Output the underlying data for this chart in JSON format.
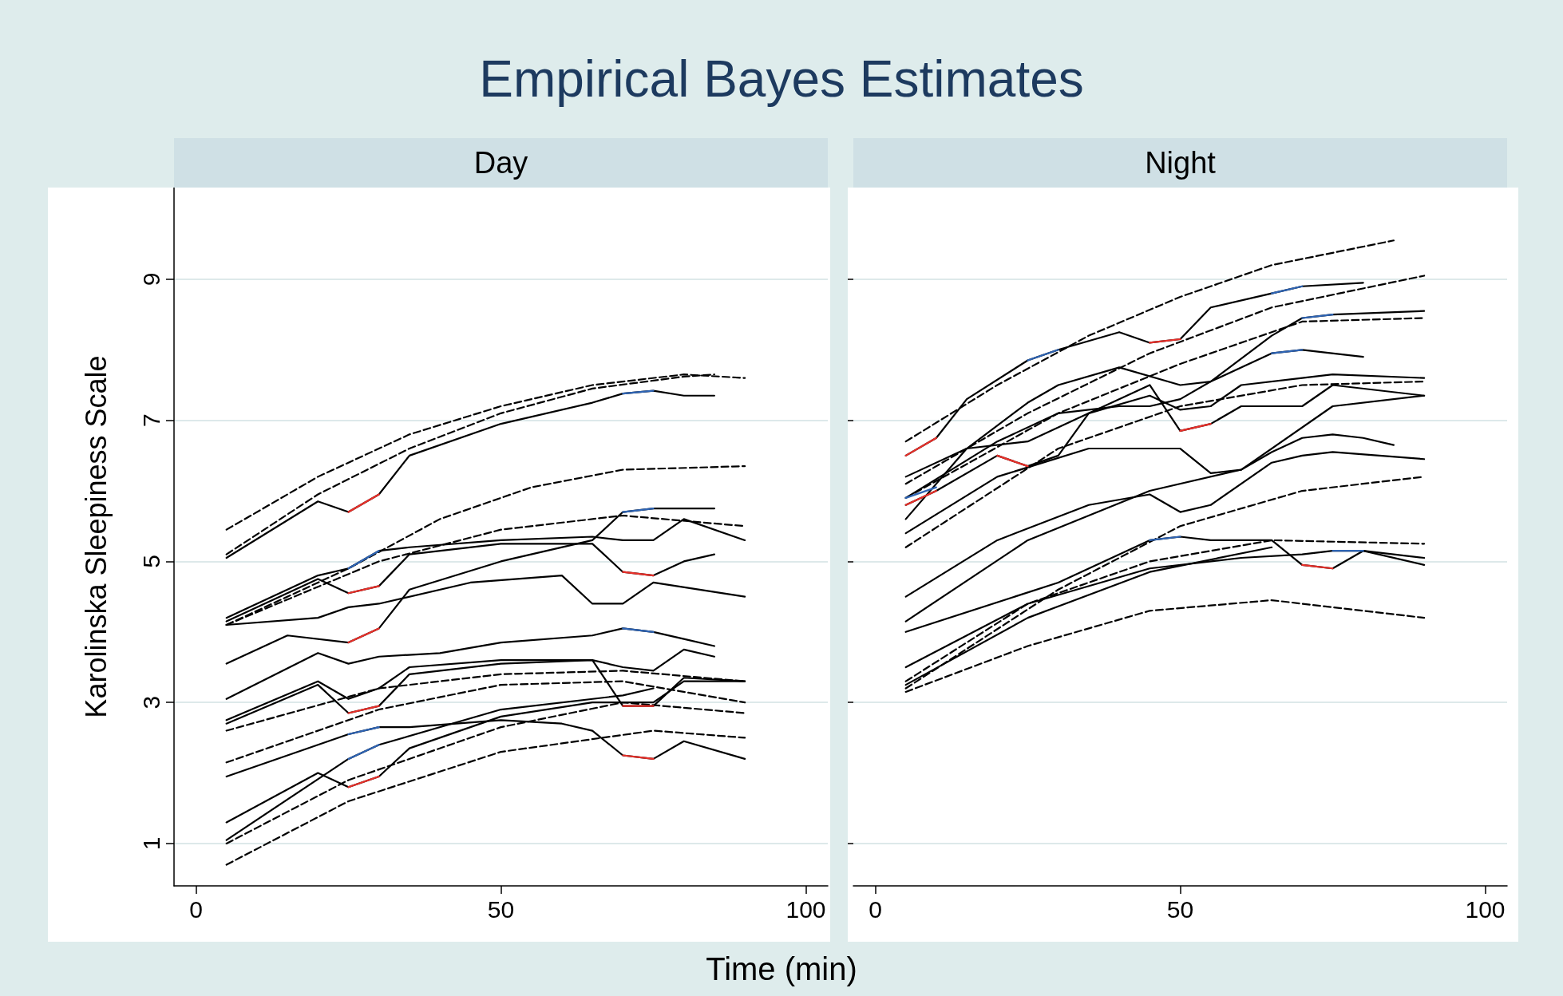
{
  "chart_data": [
    {
      "type": "line",
      "title": "Empirical Bayes Estimates",
      "subtitle": "Day",
      "ylabel": "Karolinska Sleepiness Scale",
      "xlim": [
        -3.6,
        103.6
      ],
      "ylim": [
        0.4,
        10.3
      ],
      "xticks": [
        0,
        50,
        100
      ],
      "yticks": [
        1,
        3,
        5,
        7,
        9
      ],
      "grid": "y",
      "marker": "none",
      "series": [
        {
          "color": "#000000",
          "line_style": "dashed",
          "x": [
            5,
            20,
            35,
            50,
            65,
            80,
            90
          ],
          "values": [
            5.45,
            6.2,
            6.8,
            7.2,
            7.5,
            7.65,
            7.6
          ]
        },
        {
          "color": "#000000",
          "line_style": "dashed",
          "x": [
            5,
            20,
            35,
            50,
            65,
            80,
            85
          ],
          "values": [
            5.1,
            5.95,
            6.6,
            7.1,
            7.45,
            7.62,
            7.65
          ]
        },
        {
          "color": "#000000",
          "line_style": "dashed",
          "x": [
            5,
            25,
            40,
            55,
            70,
            90
          ],
          "values": [
            4.1,
            4.9,
            5.6,
            6.05,
            6.3,
            6.35
          ]
        },
        {
          "color": "#000000",
          "line_style": "dashed",
          "x": [
            5,
            30,
            50,
            70,
            90
          ],
          "values": [
            4.1,
            5.0,
            5.45,
            5.65,
            5.5
          ]
        },
        {
          "color": "#000000",
          "line_style": "dashed",
          "x": [
            5,
            30,
            50,
            70,
            90
          ],
          "values": [
            2.6,
            3.2,
            3.4,
            3.45,
            3.3
          ]
        },
        {
          "color": "#000000",
          "line_style": "dashed",
          "x": [
            5,
            30,
            50,
            70,
            90
          ],
          "values": [
            2.15,
            2.9,
            3.25,
            3.3,
            3.0
          ]
        },
        {
          "color": "#000000",
          "line_style": "dashed",
          "x": [
            5,
            25,
            50,
            70,
            90
          ],
          "values": [
            1.0,
            1.9,
            2.65,
            3.0,
            2.85
          ]
        },
        {
          "color": "#000000",
          "line_style": "dashed",
          "x": [
            5,
            25,
            50,
            75,
            90
          ],
          "values": [
            0.7,
            1.6,
            2.3,
            2.6,
            2.5
          ]
        },
        {
          "color": "#000000",
          "line_style": "solid",
          "x": [
            5,
            20,
            25,
            30,
            35,
            50,
            65,
            70,
            75,
            80,
            85
          ],
          "values": [
            5.05,
            5.85,
            5.7,
            5.95,
            6.5,
            6.95,
            7.25,
            7.38,
            7.42,
            7.35,
            7.35
          ]
        },
        {
          "color": "#000000",
          "line_style": "solid",
          "x": [
            5,
            20,
            25,
            30,
            35,
            50,
            65,
            70,
            75,
            80,
            90
          ],
          "values": [
            4.2,
            4.8,
            4.9,
            5.15,
            5.2,
            5.3,
            5.35,
            5.3,
            5.3,
            5.6,
            5.3
          ]
        },
        {
          "color": "#000000",
          "line_style": "solid",
          "x": [
            5,
            20,
            25,
            30,
            35,
            50,
            65,
            70,
            75,
            80,
            85
          ],
          "values": [
            4.15,
            4.75,
            4.55,
            4.65,
            5.1,
            5.25,
            5.25,
            4.85,
            4.8,
            5.0,
            5.1
          ]
        },
        {
          "color": "#000000",
          "line_style": "solid",
          "x": [
            5,
            20,
            25,
            30,
            45,
            60,
            65,
            70,
            75,
            90
          ],
          "values": [
            4.1,
            4.2,
            4.35,
            4.4,
            4.7,
            4.8,
            4.4,
            4.4,
            4.7,
            4.5
          ]
        },
        {
          "color": "#000000",
          "line_style": "solid",
          "x": [
            5,
            15,
            25,
            30,
            35,
            50,
            65,
            70,
            75,
            85
          ],
          "values": [
            3.55,
            3.95,
            3.85,
            4.05,
            4.6,
            5.0,
            5.3,
            5.7,
            5.75,
            5.75
          ]
        },
        {
          "color": "#000000",
          "line_style": "solid",
          "x": [
            5,
            20,
            25,
            30,
            40,
            50,
            65,
            70,
            75,
            80,
            85
          ],
          "values": [
            3.05,
            3.7,
            3.55,
            3.65,
            3.7,
            3.85,
            3.95,
            4.05,
            4.0,
            3.9,
            3.8
          ]
        },
        {
          "color": "#000000",
          "line_style": "solid",
          "x": [
            5,
            20,
            25,
            30,
            35,
            50,
            65,
            70,
            75,
            80,
            85
          ],
          "values": [
            2.75,
            3.3,
            3.05,
            3.2,
            3.5,
            3.6,
            3.6,
            3.5,
            3.45,
            3.75,
            3.65
          ]
        },
        {
          "color": "#000000",
          "line_style": "solid",
          "x": [
            5,
            20,
            25,
            30,
            35,
            50,
            65,
            70,
            75,
            80,
            90
          ],
          "values": [
            2.7,
            3.25,
            2.85,
            2.95,
            3.4,
            3.55,
            3.6,
            2.95,
            2.95,
            3.35,
            3.3
          ]
        },
        {
          "color": "#000000",
          "line_style": "solid",
          "x": [
            5,
            20,
            25,
            30,
            35,
            50,
            60,
            65,
            70,
            75,
            80,
            90
          ],
          "values": [
            1.95,
            2.4,
            2.55,
            2.65,
            2.65,
            2.75,
            2.7,
            2.6,
            2.25,
            2.2,
            2.45,
            2.2
          ]
        },
        {
          "color": "#000000",
          "line_style": "solid",
          "x": [
            5,
            20,
            25,
            30,
            35,
            50,
            65,
            70,
            75,
            80,
            90
          ],
          "values": [
            1.3,
            2.0,
            1.8,
            1.95,
            2.35,
            2.8,
            3.0,
            3.0,
            3.0,
            3.3,
            3.3
          ]
        },
        {
          "color": "#000000",
          "line_style": "solid",
          "x": [
            5,
            25,
            30,
            50,
            70,
            75
          ],
          "values": [
            1.05,
            2.2,
            2.4,
            2.9,
            3.1,
            3.2
          ]
        },
        {
          "color": "#e8302a",
          "line_style": "solid",
          "x": [
            25,
            30
          ],
          "values": [
            5.7,
            5.95
          ]
        },
        {
          "color": "#2e64b4",
          "line_style": "solid",
          "x": [
            70,
            75
          ],
          "values": [
            7.38,
            7.42
          ]
        },
        {
          "color": "#2e64b4",
          "line_style": "solid",
          "x": [
            25,
            30
          ],
          "values": [
            4.9,
            5.15
          ]
        },
        {
          "color": "#e8302a",
          "line_style": "solid",
          "x": [
            25,
            30
          ],
          "values": [
            4.55,
            4.65
          ]
        },
        {
          "color": "#e8302a",
          "line_style": "solid",
          "x": [
            70,
            75
          ],
          "values": [
            4.85,
            4.8
          ]
        },
        {
          "color": "#2e64b4",
          "line_style": "solid",
          "x": [
            70,
            75
          ],
          "values": [
            5.7,
            5.75
          ]
        },
        {
          "color": "#e8302a",
          "line_style": "solid",
          "x": [
            25,
            30
          ],
          "values": [
            3.85,
            4.05
          ]
        },
        {
          "color": "#2e64b4",
          "line_style": "solid",
          "x": [
            70,
            75
          ],
          "values": [
            4.05,
            4.0
          ]
        },
        {
          "color": "#e8302a",
          "line_style": "solid",
          "x": [
            25,
            30
          ],
          "values": [
            2.85,
            2.95
          ]
        },
        {
          "color": "#e8302a",
          "line_style": "solid",
          "x": [
            70,
            75
          ],
          "values": [
            2.95,
            2.95
          ]
        },
        {
          "color": "#2e64b4",
          "line_style": "solid",
          "x": [
            25,
            30
          ],
          "values": [
            2.55,
            2.65
          ]
        },
        {
          "color": "#e8302a",
          "line_style": "solid",
          "x": [
            70,
            75
          ],
          "values": [
            2.25,
            2.2
          ]
        },
        {
          "color": "#e8302a",
          "line_style": "solid",
          "x": [
            25,
            30
          ],
          "values": [
            1.8,
            1.95
          ]
        },
        {
          "color": "#2e64b4",
          "line_style": "solid",
          "x": [
            25,
            30
          ],
          "values": [
            2.2,
            2.4
          ]
        }
      ]
    },
    {
      "type": "line",
      "subtitle": "Night",
      "xlabel": "Time (min)",
      "xlim": [
        -3.6,
        103.6
      ],
      "ylim": [
        0.4,
        10.3
      ],
      "xticks": [
        0,
        50,
        100
      ],
      "yticks": [
        1,
        3,
        5,
        7,
        9
      ],
      "grid": "y",
      "marker": "none",
      "tick_labels": "x",
      "series": [
        {
          "color": "#000000",
          "line_style": "dashed",
          "x": [
            5,
            20,
            35,
            50,
            65,
            85
          ],
          "values": [
            6.7,
            7.5,
            8.2,
            8.75,
            9.2,
            9.55
          ]
        },
        {
          "color": "#000000",
          "line_style": "dashed",
          "x": [
            5,
            25,
            45,
            65,
            90
          ],
          "values": [
            6.1,
            7.1,
            7.95,
            8.6,
            9.05
          ]
        },
        {
          "color": "#000000",
          "line_style": "dashed",
          "x": [
            5,
            30,
            50,
            70,
            90
          ],
          "values": [
            5.9,
            7.1,
            7.8,
            8.4,
            8.45
          ]
        },
        {
          "color": "#000000",
          "line_style": "dashed",
          "x": [
            5,
            30,
            50,
            70,
            90
          ],
          "values": [
            5.2,
            6.6,
            7.2,
            7.5,
            7.55
          ]
        },
        {
          "color": "#000000",
          "line_style": "dashed",
          "x": [
            5,
            30,
            50,
            70,
            90
          ],
          "values": [
            3.2,
            4.6,
            5.5,
            6.0,
            6.2
          ]
        },
        {
          "color": "#000000",
          "line_style": "dashed",
          "x": [
            5,
            25,
            45,
            65,
            90
          ],
          "values": [
            3.3,
            4.4,
            5.0,
            5.3,
            5.25
          ]
        },
        {
          "color": "#000000",
          "line_style": "dashed",
          "x": [
            5,
            25,
            45,
            65,
            90
          ],
          "values": [
            3.15,
            3.8,
            4.3,
            4.45,
            4.2
          ]
        },
        {
          "color": "#000000",
          "line_style": "solid",
          "x": [
            5,
            10,
            15,
            25,
            30,
            40,
            45,
            50,
            55,
            65,
            70,
            80
          ],
          "values": [
            6.5,
            6.75,
            7.3,
            7.85,
            8.0,
            8.25,
            8.1,
            8.15,
            8.6,
            8.8,
            8.9,
            8.95
          ]
        },
        {
          "color": "#000000",
          "line_style": "solid",
          "x": [
            5,
            15,
            25,
            30,
            40,
            50,
            55,
            65,
            70,
            80
          ],
          "values": [
            6.2,
            6.6,
            7.25,
            7.5,
            7.75,
            7.5,
            7.55,
            7.95,
            8.0,
            7.9
          ]
        },
        {
          "color": "#000000",
          "line_style": "solid",
          "x": [
            5,
            20,
            30,
            40,
            45,
            50,
            55,
            65,
            70,
            75,
            90
          ],
          "values": [
            5.9,
            6.7,
            7.1,
            7.2,
            7.2,
            7.3,
            7.55,
            8.2,
            8.45,
            8.5,
            8.55
          ]
        },
        {
          "color": "#000000",
          "line_style": "solid",
          "x": [
            5,
            10,
            20,
            25,
            30,
            35,
            45,
            50,
            55,
            60,
            70,
            75,
            90
          ],
          "values": [
            5.8,
            6.0,
            6.5,
            6.35,
            6.5,
            7.1,
            7.35,
            7.15,
            7.2,
            7.5,
            7.6,
            7.65,
            7.6
          ]
        },
        {
          "color": "#000000",
          "line_style": "solid",
          "x": [
            5,
            15,
            25,
            35,
            45,
            50,
            55,
            60,
            70,
            75,
            90
          ],
          "values": [
            5.6,
            6.6,
            6.7,
            7.1,
            7.5,
            6.85,
            6.95,
            7.2,
            7.2,
            7.5,
            7.35
          ]
        },
        {
          "color": "#000000",
          "line_style": "solid",
          "x": [
            5,
            20,
            35,
            50,
            55,
            60,
            65,
            70,
            75,
            80,
            85
          ],
          "values": [
            5.4,
            6.2,
            6.6,
            6.6,
            6.25,
            6.3,
            6.55,
            6.75,
            6.8,
            6.75,
            6.65
          ]
        },
        {
          "color": "#000000",
          "line_style": "solid",
          "x": [
            5,
            20,
            35,
            45,
            50,
            55,
            65,
            70,
            75,
            90
          ],
          "values": [
            4.5,
            5.3,
            5.8,
            5.95,
            5.7,
            5.8,
            6.4,
            6.5,
            6.55,
            6.45
          ]
        },
        {
          "color": "#000000",
          "line_style": "solid",
          "x": [
            5,
            25,
            45,
            60,
            75,
            90
          ],
          "values": [
            4.15,
            5.3,
            6.0,
            6.3,
            7.2,
            7.35
          ]
        },
        {
          "color": "#000000",
          "line_style": "solid",
          "x": [
            5,
            30,
            45,
            50,
            55,
            65,
            70,
            75,
            80,
            90
          ],
          "values": [
            4.0,
            4.7,
            5.3,
            5.35,
            5.3,
            5.3,
            4.95,
            4.9,
            5.15,
            4.95
          ]
        },
        {
          "color": "#000000",
          "line_style": "solid",
          "x": [
            5,
            25,
            45,
            60,
            70,
            75,
            80,
            90
          ],
          "values": [
            3.5,
            4.4,
            4.9,
            5.05,
            5.1,
            5.15,
            5.15,
            5.05
          ]
        },
        {
          "color": "#000000",
          "line_style": "solid",
          "x": [
            5,
            25,
            45,
            65
          ],
          "values": [
            3.25,
            4.2,
            4.85,
            5.2
          ]
        },
        {
          "color": "#e8302a",
          "line_style": "solid",
          "x": [
            5,
            10
          ],
          "values": [
            6.5,
            6.75
          ]
        },
        {
          "color": "#2e64b4",
          "line_style": "solid",
          "x": [
            25,
            30
          ],
          "values": [
            7.85,
            8.0
          ]
        },
        {
          "color": "#e8302a",
          "line_style": "solid",
          "x": [
            45,
            50
          ],
          "values": [
            8.1,
            8.15
          ]
        },
        {
          "color": "#2e64b4",
          "line_style": "solid",
          "x": [
            65,
            70
          ],
          "values": [
            8.8,
            8.9
          ]
        },
        {
          "color": "#2e64b4",
          "line_style": "solid",
          "x": [
            70,
            75
          ],
          "values": [
            8.45,
            8.5
          ]
        },
        {
          "color": "#2e64b4",
          "line_style": "solid",
          "x": [
            65,
            70
          ],
          "values": [
            7.95,
            8.0
          ]
        },
        {
          "color": "#e8302a",
          "line_style": "solid",
          "x": [
            20,
            25
          ],
          "values": [
            6.5,
            6.35
          ]
        },
        {
          "color": "#e8302a",
          "line_style": "solid",
          "x": [
            50,
            55
          ],
          "values": [
            6.85,
            6.95
          ]
        },
        {
          "color": "#2e64b4",
          "line_style": "solid",
          "x": [
            45,
            50
          ],
          "values": [
            5.3,
            5.35
          ]
        },
        {
          "color": "#e8302a",
          "line_style": "solid",
          "x": [
            70,
            75
          ],
          "values": [
            4.95,
            4.9
          ]
        },
        {
          "color": "#2e64b4",
          "line_style": "solid",
          "x": [
            75,
            80
          ],
          "values": [
            5.15,
            5.15
          ]
        },
        {
          "color": "#e8302a",
          "line_style": "solid",
          "x": [
            5,
            10
          ],
          "values": [
            5.8,
            6.0
          ]
        },
        {
          "color": "#2e64b4",
          "line_style": "solid",
          "x": [
            5,
            10
          ],
          "values": [
            5.9,
            6.05
          ]
        }
      ]
    }
  ]
}
